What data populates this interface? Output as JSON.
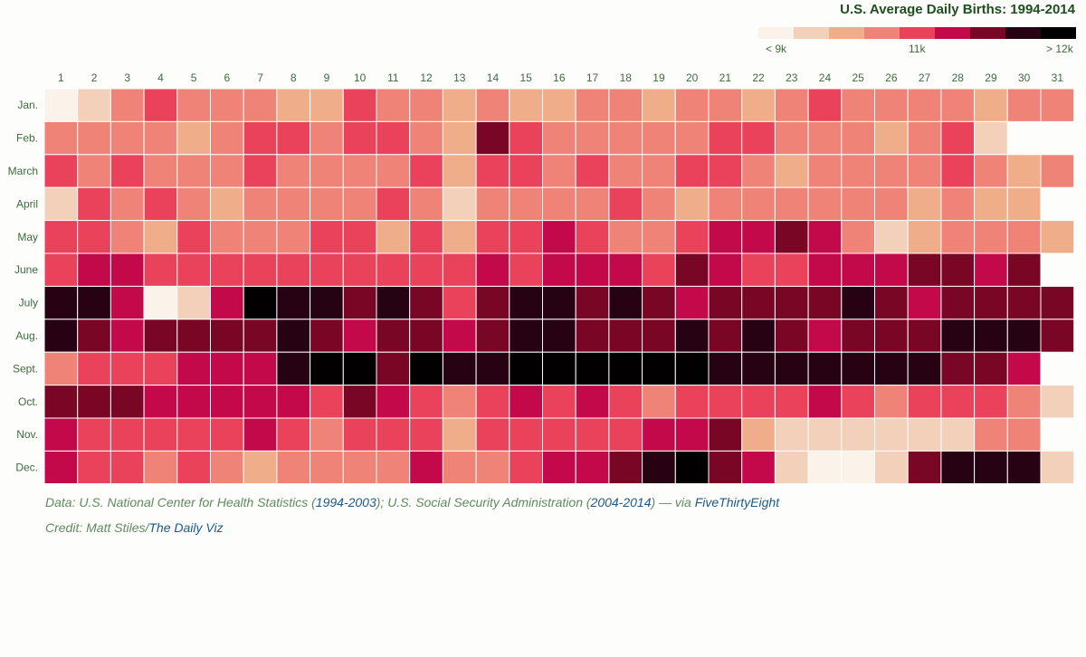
{
  "title": "U.S. Average Daily Births: 1994-2014",
  "legend": {
    "colors": [
      "#fbf3ea",
      "#f3d0ba",
      "#f0ad8a",
      "#f08378",
      "#e9425a",
      "#c4094b",
      "#7a0626",
      "#270212",
      "#020000"
    ],
    "low_label": "< 9k",
    "mid_label": "11k",
    "high_label": "> 12k"
  },
  "credits": {
    "data_prefix": "Data: U.S. National Center for Health Statistics (",
    "data_link1": "1994-2003",
    "data_mid": "); U.S. Social Security Administration (",
    "data_link2": "2004-2014",
    "data_suffix": ") — via ",
    "data_link3": "FiveThirtyEight",
    "credit_prefix": "Credit: Matt Stiles/",
    "credit_link": "The Daily Viz"
  },
  "chart_data": {
    "type": "heatmap",
    "title": "U.S. Average Daily Births: 1994-2014",
    "x_labels": [
      "1",
      "2",
      "3",
      "4",
      "5",
      "6",
      "7",
      "8",
      "9",
      "10",
      "11",
      "12",
      "13",
      "14",
      "15",
      "16",
      "17",
      "18",
      "19",
      "20",
      "21",
      "22",
      "23",
      "24",
      "25",
      "26",
      "27",
      "28",
      "29",
      "30",
      "31"
    ],
    "y_labels": [
      "Jan.",
      "Feb.",
      "March",
      "April",
      "May",
      "June",
      "July",
      "Aug.",
      "Sept.",
      "Oct.",
      "Nov.",
      "Dec."
    ],
    "color_scale": {
      "low": "< 9k",
      "mid": "11k",
      "high": "> 12k",
      "steps": 9
    },
    "values_level": [
      [
        0,
        1,
        3,
        4,
        3,
        3,
        3,
        2,
        2,
        4,
        3,
        3,
        2,
        3,
        2,
        2,
        3,
        3,
        2,
        3,
        3,
        2,
        3,
        4,
        3,
        3,
        3,
        3,
        2,
        3,
        3
      ],
      [
        3,
        3,
        3,
        3,
        2,
        3,
        4,
        4,
        3,
        4,
        4,
        3,
        2,
        6,
        4,
        3,
        3,
        3,
        3,
        3,
        4,
        4,
        3,
        3,
        3,
        2,
        3,
        4,
        1,
        null,
        null
      ],
      [
        4,
        3,
        4,
        3,
        3,
        3,
        4,
        3,
        3,
        3,
        3,
        4,
        2,
        4,
        4,
        3,
        4,
        3,
        3,
        4,
        4,
        3,
        2,
        3,
        3,
        3,
        3,
        4,
        3,
        2,
        3
      ],
      [
        1,
        4,
        3,
        4,
        3,
        2,
        3,
        3,
        3,
        3,
        4,
        3,
        1,
        3,
        3,
        3,
        3,
        4,
        3,
        2,
        3,
        3,
        3,
        3,
        3,
        3,
        2,
        3,
        2,
        2,
        null
      ],
      [
        4,
        4,
        3,
        2,
        4,
        3,
        3,
        3,
        4,
        4,
        2,
        4,
        2,
        4,
        4,
        5,
        4,
        3,
        3,
        4,
        5,
        5,
        6,
        5,
        3,
        1,
        2,
        3,
        3,
        3,
        2
      ],
      [
        4,
        5,
        5,
        4,
        4,
        4,
        4,
        4,
        4,
        4,
        4,
        4,
        4,
        5,
        4,
        5,
        5,
        5,
        4,
        6,
        5,
        4,
        4,
        5,
        5,
        5,
        6,
        6,
        5,
        6,
        null
      ],
      [
        7,
        7,
        5,
        0,
        1,
        5,
        8,
        7,
        7,
        6,
        7,
        6,
        4,
        6,
        7,
        7,
        6,
        7,
        6,
        5,
        6,
        6,
        6,
        6,
        7,
        6,
        5,
        6,
        6,
        6,
        6
      ],
      [
        7,
        6,
        5,
        6,
        6,
        6,
        6,
        7,
        6,
        5,
        6,
        6,
        5,
        6,
        7,
        7,
        6,
        6,
        6,
        7,
        6,
        7,
        6,
        5,
        6,
        6,
        6,
        7,
        7,
        7,
        6
      ],
      [
        3,
        4,
        4,
        4,
        5,
        5,
        5,
        7,
        8,
        8,
        6,
        8,
        7,
        7,
        8,
        8,
        8,
        8,
        8,
        8,
        7,
        7,
        7,
        7,
        7,
        7,
        7,
        6,
        6,
        5,
        null
      ],
      [
        6,
        6,
        6,
        5,
        5,
        5,
        5,
        5,
        4,
        6,
        5,
        4,
        3,
        4,
        5,
        4,
        5,
        4,
        3,
        4,
        4,
        4,
        4,
        5,
        4,
        3,
        4,
        4,
        4,
        3,
        1
      ],
      [
        5,
        4,
        4,
        4,
        4,
        4,
        5,
        4,
        3,
        4,
        4,
        4,
        2,
        4,
        4,
        4,
        4,
        4,
        5,
        5,
        6,
        2,
        1,
        1,
        1,
        1,
        1,
        1,
        3,
        3,
        null
      ],
      [
        5,
        4,
        4,
        3,
        4,
        3,
        2,
        3,
        3,
        3,
        3,
        5,
        3,
        3,
        4,
        5,
        5,
        6,
        7,
        8,
        6,
        5,
        1,
        0,
        0,
        1,
        6,
        7,
        7,
        7,
        1
      ]
    ]
  }
}
